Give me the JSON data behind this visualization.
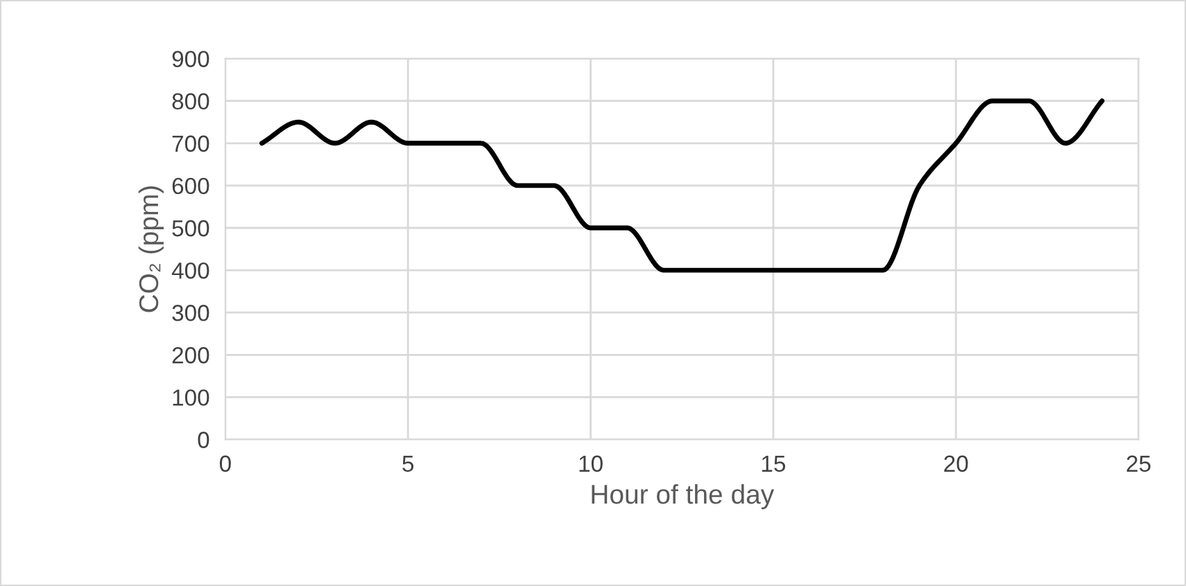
{
  "chart_data": {
    "type": "line",
    "xlabel": "Hour of the day",
    "ylabel": "CO₂ (ppm)",
    "x": [
      1,
      2,
      3,
      4,
      5,
      6,
      7,
      8,
      9,
      10,
      11,
      12,
      13,
      14,
      15,
      16,
      17,
      18,
      19,
      20,
      21,
      22,
      23,
      24
    ],
    "series": [
      {
        "color": "#000000",
        "values": [
          700,
          750,
          700,
          750,
          700,
          700,
          700,
          600,
          600,
          500,
          500,
          400,
          400,
          400,
          400,
          400,
          400,
          400,
          600,
          700,
          800,
          800,
          700,
          800
        ]
      }
    ],
    "xlim": [
      0,
      25
    ],
    "xticks": [
      0,
      5,
      10,
      15,
      20,
      25
    ],
    "ylim": [
      0,
      900
    ],
    "yticks": [
      0,
      100,
      200,
      300,
      400,
      500,
      600,
      700,
      800,
      900
    ],
    "grid": true,
    "marker": "none",
    "line_style": "solid"
  }
}
